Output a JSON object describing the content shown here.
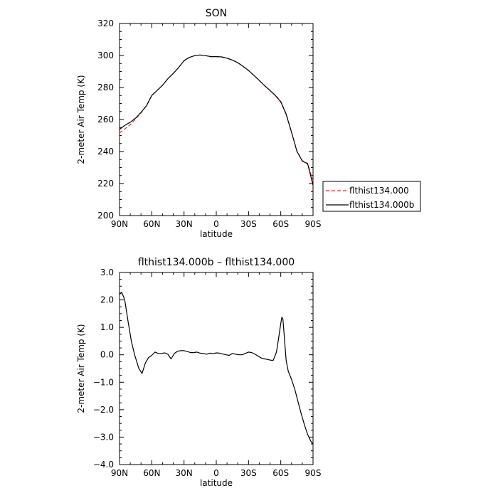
{
  "chart_data": [
    {
      "type": "line",
      "title": "SON",
      "xlabel": "latitude",
      "ylabel": "2-meter Air Temp (K)",
      "x_ticks": [
        90,
        60,
        30,
        0,
        -30,
        -60,
        -90
      ],
      "x_tick_labels": [
        "90N",
        "60N",
        "30N",
        "0",
        "30S",
        "60S",
        "90S"
      ],
      "xlim": [
        90,
        -90
      ],
      "ylim": [
        200,
        320
      ],
      "y_ticks": [
        200,
        220,
        240,
        260,
        280,
        300,
        320
      ],
      "y_tick_labels": [
        "200",
        "220",
        "240",
        "260",
        "280",
        "300",
        "320"
      ],
      "legend_position": "right",
      "series": [
        {
          "name": "flthist134.000",
          "color": "#e03030",
          "dash": "dashed",
          "points": [
            [
              90,
              251.6
            ],
            [
              85,
              254.2
            ],
            [
              80,
              256.8
            ],
            [
              75,
              260.4
            ],
            [
              70,
              264.1
            ],
            [
              65,
              268.7
            ],
            [
              60,
              275.1
            ],
            [
              55,
              278.2
            ],
            [
              50,
              281.4
            ],
            [
              45,
              285.5
            ],
            [
              40,
              288.8
            ],
            [
              35,
              292.5
            ],
            [
              30,
              296.8
            ],
            [
              25,
              298.8
            ],
            [
              20,
              299.9
            ],
            [
              15,
              300.3
            ],
            [
              10,
              299.9
            ],
            [
              5,
              299.3
            ],
            [
              0,
              299.3
            ],
            [
              -5,
              299.1
            ],
            [
              -10,
              298.3
            ],
            [
              -15,
              297.1
            ],
            [
              -20,
              295.5
            ],
            [
              -25,
              293.2
            ],
            [
              -30,
              290.6
            ],
            [
              -35,
              287.6
            ],
            [
              -40,
              284.4
            ],
            [
              -45,
              281.1
            ],
            [
              -50,
              278.2
            ],
            [
              -55,
              275.2
            ],
            [
              -60,
              271.3
            ],
            [
              -65,
              263.7
            ],
            [
              -70,
              252.3
            ],
            [
              -75,
              240.4
            ],
            [
              -80,
              234.4
            ],
            [
              -85,
              232.6
            ],
            [
              -90,
              221.7
            ]
          ]
        },
        {
          "name": "flthist134.000b",
          "color": "#000000",
          "dash": "solid",
          "points": [
            [
              90,
              253.8
            ],
            [
              85,
              256.4
            ],
            [
              80,
              258.3
            ],
            [
              75,
              260.9
            ],
            [
              70,
              264.5
            ],
            [
              65,
              268.5
            ],
            [
              60,
              275.0
            ],
            [
              55,
              278.2
            ],
            [
              50,
              281.4
            ],
            [
              45,
              285.5
            ],
            [
              40,
              288.8
            ],
            [
              35,
              292.5
            ],
            [
              30,
              296.8
            ],
            [
              25,
              298.8
            ],
            [
              20,
              299.9
            ],
            [
              15,
              300.3
            ],
            [
              10,
              299.9
            ],
            [
              5,
              299.3
            ],
            [
              0,
              299.3
            ],
            [
              -5,
              299.1
            ],
            [
              -10,
              298.3
            ],
            [
              -15,
              297.1
            ],
            [
              -20,
              295.5
            ],
            [
              -25,
              293.2
            ],
            [
              -30,
              290.6
            ],
            [
              -35,
              287.6
            ],
            [
              -40,
              284.4
            ],
            [
              -45,
              281.1
            ],
            [
              -50,
              278.1
            ],
            [
              -55,
              275.0
            ],
            [
              -60,
              271.0
            ],
            [
              -65,
              263.3
            ],
            [
              -70,
              252.0
            ],
            [
              -75,
              240.2
            ],
            [
              -80,
              234.0
            ],
            [
              -85,
              232.4
            ],
            [
              -90,
              219.0
            ]
          ]
        }
      ]
    },
    {
      "type": "line",
      "title": "flthist134.000b – flthist134.000",
      "xlabel": "latitude",
      "ylabel": "2-meter Air Temp (K)",
      "x_ticks": [
        90,
        60,
        30,
        0,
        -30,
        -60,
        -90
      ],
      "x_tick_labels": [
        "90N",
        "60N",
        "30N",
        "0",
        "30S",
        "60S",
        "90S"
      ],
      "xlim": [
        90,
        -90
      ],
      "ylim": [
        -4.0,
        3.0
      ],
      "y_ticks": [
        -4,
        -3,
        -2,
        -1,
        0,
        1,
        2,
        3
      ],
      "y_tick_labels": [
        "−4.0",
        "−3.0",
        "−2.0",
        "−1.0",
        "0.0",
        "1.0",
        "2.0",
        "3.0"
      ],
      "series": [
        {
          "name": "",
          "color": "#000000",
          "dash": "solid",
          "points": [
            [
              90,
              2.2
            ],
            [
              88,
              2.28
            ],
            [
              86,
              2.1
            ],
            [
              85,
              1.95
            ],
            [
              82,
              1.2
            ],
            [
              79,
              0.5
            ],
            [
              76,
              0.0
            ],
            [
              72,
              -0.5
            ],
            [
              69,
              -0.68
            ],
            [
              66,
              -0.3
            ],
            [
              63,
              -0.1
            ],
            [
              60,
              -0.02
            ],
            [
              57,
              0.1
            ],
            [
              54,
              0.05
            ],
            [
              51,
              0.05
            ],
            [
              48,
              0.07
            ],
            [
              45,
              0.02
            ],
            [
              42,
              -0.15
            ],
            [
              39,
              0.05
            ],
            [
              36,
              0.13
            ],
            [
              33,
              0.15
            ],
            [
              30,
              0.15
            ],
            [
              27,
              0.12
            ],
            [
              24,
              0.08
            ],
            [
              21,
              0.08
            ],
            [
              18,
              0.1
            ],
            [
              15,
              0.06
            ],
            [
              12,
              0.05
            ],
            [
              9,
              0.02
            ],
            [
              6,
              0.06
            ],
            [
              3,
              0.04
            ],
            [
              0,
              0.07
            ],
            [
              -3,
              0.06
            ],
            [
              -6,
              0.03
            ],
            [
              -9,
              0.0
            ],
            [
              -12,
              -0.02
            ],
            [
              -15,
              0.05
            ],
            [
              -18,
              0.02
            ],
            [
              -21,
              0.0
            ],
            [
              -24,
              0.0
            ],
            [
              -27,
              0.05
            ],
            [
              -30,
              0.1
            ],
            [
              -33,
              0.08
            ],
            [
              -36,
              0.02
            ],
            [
              -39,
              -0.05
            ],
            [
              -42,
              -0.12
            ],
            [
              -45,
              -0.15
            ],
            [
              -48,
              -0.17
            ],
            [
              -51,
              -0.2
            ],
            [
              -53,
              -0.2
            ],
            [
              -56,
              0.1
            ],
            [
              -58,
              0.6
            ],
            [
              -60,
              1.15
            ],
            [
              -61,
              1.37
            ],
            [
              -62,
              1.3
            ],
            [
              -63,
              0.8
            ],
            [
              -65,
              -0.2
            ],
            [
              -67,
              -0.6
            ],
            [
              -70,
              -0.9
            ],
            [
              -73,
              -1.25
            ],
            [
              -76,
              -1.7
            ],
            [
              -79,
              -2.15
            ],
            [
              -82,
              -2.55
            ],
            [
              -85,
              -2.9
            ],
            [
              -88,
              -3.15
            ],
            [
              -90,
              -3.25
            ]
          ]
        }
      ]
    }
  ]
}
